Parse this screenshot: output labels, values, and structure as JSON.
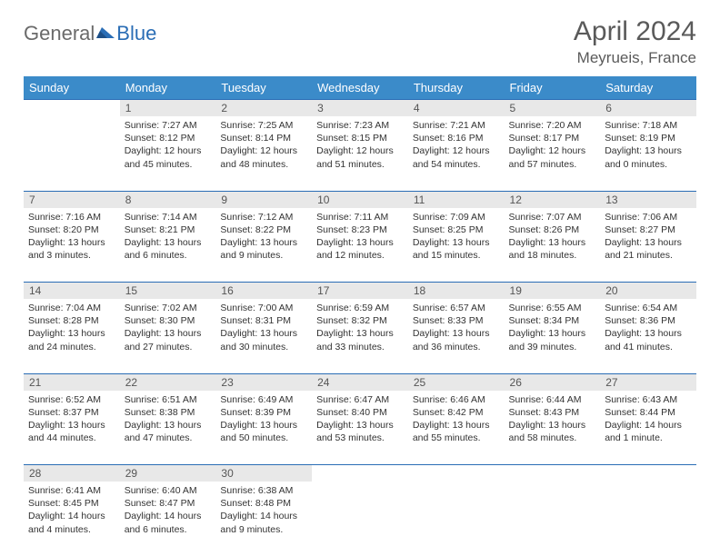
{
  "logo": {
    "general": "General",
    "blue": "Blue"
  },
  "title": "April 2024",
  "location": "Meyrueis, France",
  "colors": {
    "header_bg": "#3b8bc9",
    "border": "#2a6db5",
    "daynum_bg": "#e8e8e8",
    "text": "#333333",
    "title_text": "#5a5a5a"
  },
  "weekdays": [
    "Sunday",
    "Monday",
    "Tuesday",
    "Wednesday",
    "Thursday",
    "Friday",
    "Saturday"
  ],
  "weeks": [
    [
      null,
      {
        "n": "1",
        "sr": "Sunrise: 7:27 AM",
        "ss": "Sunset: 8:12 PM",
        "dl": "Daylight: 12 hours and 45 minutes."
      },
      {
        "n": "2",
        "sr": "Sunrise: 7:25 AM",
        "ss": "Sunset: 8:14 PM",
        "dl": "Daylight: 12 hours and 48 minutes."
      },
      {
        "n": "3",
        "sr": "Sunrise: 7:23 AM",
        "ss": "Sunset: 8:15 PM",
        "dl": "Daylight: 12 hours and 51 minutes."
      },
      {
        "n": "4",
        "sr": "Sunrise: 7:21 AM",
        "ss": "Sunset: 8:16 PM",
        "dl": "Daylight: 12 hours and 54 minutes."
      },
      {
        "n": "5",
        "sr": "Sunrise: 7:20 AM",
        "ss": "Sunset: 8:17 PM",
        "dl": "Daylight: 12 hours and 57 minutes."
      },
      {
        "n": "6",
        "sr": "Sunrise: 7:18 AM",
        "ss": "Sunset: 8:19 PM",
        "dl": "Daylight: 13 hours and 0 minutes."
      }
    ],
    [
      {
        "n": "7",
        "sr": "Sunrise: 7:16 AM",
        "ss": "Sunset: 8:20 PM",
        "dl": "Daylight: 13 hours and 3 minutes."
      },
      {
        "n": "8",
        "sr": "Sunrise: 7:14 AM",
        "ss": "Sunset: 8:21 PM",
        "dl": "Daylight: 13 hours and 6 minutes."
      },
      {
        "n": "9",
        "sr": "Sunrise: 7:12 AM",
        "ss": "Sunset: 8:22 PM",
        "dl": "Daylight: 13 hours and 9 minutes."
      },
      {
        "n": "10",
        "sr": "Sunrise: 7:11 AM",
        "ss": "Sunset: 8:23 PM",
        "dl": "Daylight: 13 hours and 12 minutes."
      },
      {
        "n": "11",
        "sr": "Sunrise: 7:09 AM",
        "ss": "Sunset: 8:25 PM",
        "dl": "Daylight: 13 hours and 15 minutes."
      },
      {
        "n": "12",
        "sr": "Sunrise: 7:07 AM",
        "ss": "Sunset: 8:26 PM",
        "dl": "Daylight: 13 hours and 18 minutes."
      },
      {
        "n": "13",
        "sr": "Sunrise: 7:06 AM",
        "ss": "Sunset: 8:27 PM",
        "dl": "Daylight: 13 hours and 21 minutes."
      }
    ],
    [
      {
        "n": "14",
        "sr": "Sunrise: 7:04 AM",
        "ss": "Sunset: 8:28 PM",
        "dl": "Daylight: 13 hours and 24 minutes."
      },
      {
        "n": "15",
        "sr": "Sunrise: 7:02 AM",
        "ss": "Sunset: 8:30 PM",
        "dl": "Daylight: 13 hours and 27 minutes."
      },
      {
        "n": "16",
        "sr": "Sunrise: 7:00 AM",
        "ss": "Sunset: 8:31 PM",
        "dl": "Daylight: 13 hours and 30 minutes."
      },
      {
        "n": "17",
        "sr": "Sunrise: 6:59 AM",
        "ss": "Sunset: 8:32 PM",
        "dl": "Daylight: 13 hours and 33 minutes."
      },
      {
        "n": "18",
        "sr": "Sunrise: 6:57 AM",
        "ss": "Sunset: 8:33 PM",
        "dl": "Daylight: 13 hours and 36 minutes."
      },
      {
        "n": "19",
        "sr": "Sunrise: 6:55 AM",
        "ss": "Sunset: 8:34 PM",
        "dl": "Daylight: 13 hours and 39 minutes."
      },
      {
        "n": "20",
        "sr": "Sunrise: 6:54 AM",
        "ss": "Sunset: 8:36 PM",
        "dl": "Daylight: 13 hours and 41 minutes."
      }
    ],
    [
      {
        "n": "21",
        "sr": "Sunrise: 6:52 AM",
        "ss": "Sunset: 8:37 PM",
        "dl": "Daylight: 13 hours and 44 minutes."
      },
      {
        "n": "22",
        "sr": "Sunrise: 6:51 AM",
        "ss": "Sunset: 8:38 PM",
        "dl": "Daylight: 13 hours and 47 minutes."
      },
      {
        "n": "23",
        "sr": "Sunrise: 6:49 AM",
        "ss": "Sunset: 8:39 PM",
        "dl": "Daylight: 13 hours and 50 minutes."
      },
      {
        "n": "24",
        "sr": "Sunrise: 6:47 AM",
        "ss": "Sunset: 8:40 PM",
        "dl": "Daylight: 13 hours and 53 minutes."
      },
      {
        "n": "25",
        "sr": "Sunrise: 6:46 AM",
        "ss": "Sunset: 8:42 PM",
        "dl": "Daylight: 13 hours and 55 minutes."
      },
      {
        "n": "26",
        "sr": "Sunrise: 6:44 AM",
        "ss": "Sunset: 8:43 PM",
        "dl": "Daylight: 13 hours and 58 minutes."
      },
      {
        "n": "27",
        "sr": "Sunrise: 6:43 AM",
        "ss": "Sunset: 8:44 PM",
        "dl": "Daylight: 14 hours and 1 minute."
      }
    ],
    [
      {
        "n": "28",
        "sr": "Sunrise: 6:41 AM",
        "ss": "Sunset: 8:45 PM",
        "dl": "Daylight: 14 hours and 4 minutes."
      },
      {
        "n": "29",
        "sr": "Sunrise: 6:40 AM",
        "ss": "Sunset: 8:47 PM",
        "dl": "Daylight: 14 hours and 6 minutes."
      },
      {
        "n": "30",
        "sr": "Sunrise: 6:38 AM",
        "ss": "Sunset: 8:48 PM",
        "dl": "Daylight: 14 hours and 9 minutes."
      },
      null,
      null,
      null,
      null
    ]
  ]
}
